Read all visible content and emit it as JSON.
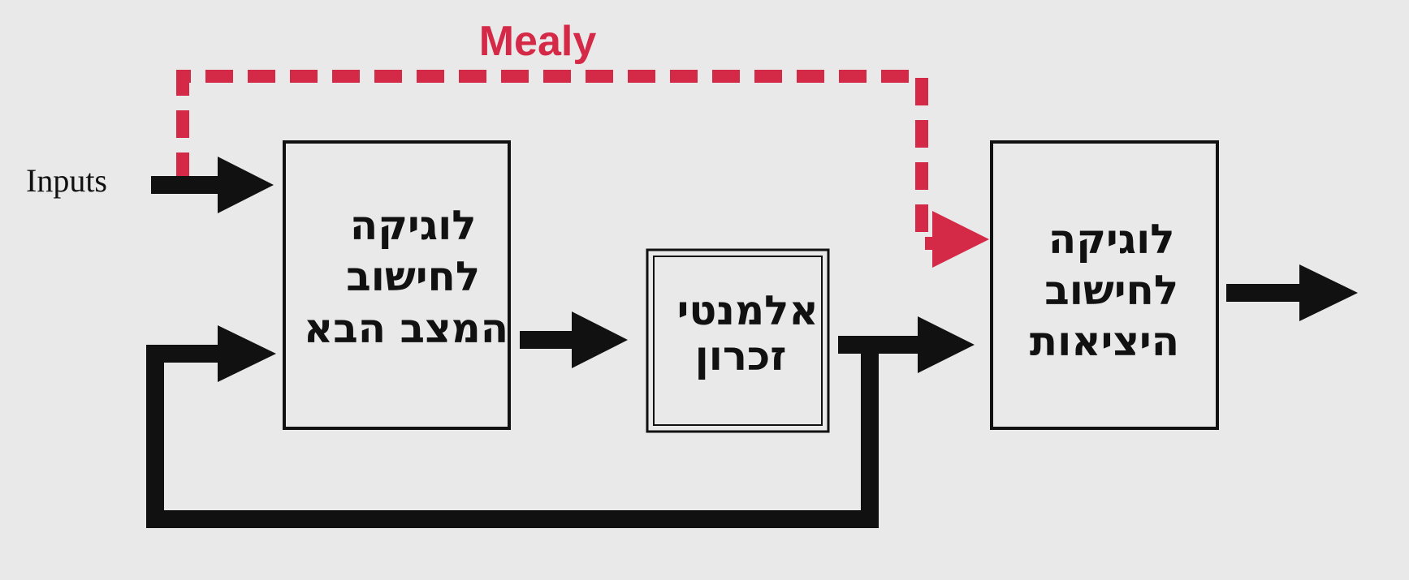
{
  "diagram": {
    "inputs_label": "Inputs",
    "mealy_label": "Mealy",
    "next_state_logic": {
      "lines": [
        "לוגיקה",
        "לחישוב",
        "המצב הבא"
      ]
    },
    "memory": {
      "lines": [
        "אלמנטי",
        "זכרון"
      ]
    },
    "output_logic": {
      "lines": [
        "לוגיקה",
        "לחישוב",
        "היציאות"
      ]
    }
  },
  "colors": {
    "accent": "#d42a47",
    "ink": "#111111",
    "background": "#e9e9e9"
  }
}
